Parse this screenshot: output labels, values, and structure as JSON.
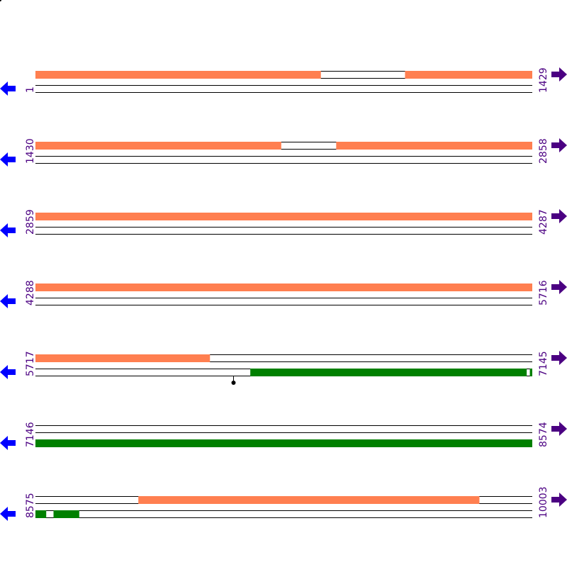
{
  "rows": [
    {
      "start": "1",
      "end": "1429"
    },
    {
      "start": "1430",
      "end": "2858"
    },
    {
      "start": "2859",
      "end": "4287"
    },
    {
      "start": "4288",
      "end": "5716"
    },
    {
      "start": "5717",
      "end": "7145"
    },
    {
      "start": "7146",
      "end": "8574"
    },
    {
      "start": "8575",
      "end": "10003"
    }
  ],
  "bases_per_row": 1429,
  "colors": {
    "top_feature": "#ff7f50",
    "bottom_feature": "#008000",
    "left_arrow": "#0000ff",
    "right_arrow": "#4b0082",
    "label": "#4b0082",
    "line": "#000000"
  },
  "features": {
    "top": [
      [
        1,
        821
      ],
      [
        1064,
        2136
      ],
      [
        2295,
        6218
      ],
      [
        8871,
        9851
      ]
    ],
    "bottom": [
      [
        6335,
        7129
      ],
      [
        7139,
        8605
      ],
      [
        8627,
        8700
      ]
    ]
  },
  "markers": [
    6286
  ],
  "icons": {
    "left": "arrow-left-icon",
    "right": "arrow-right-icon"
  }
}
